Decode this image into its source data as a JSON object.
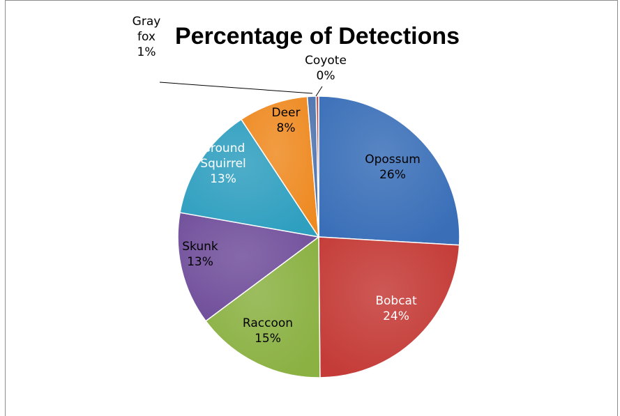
{
  "chart_data": {
    "type": "pie",
    "title": "Percentage of Detections",
    "slices": [
      {
        "label": "Opossum",
        "lines": [
          "Opossum"
        ],
        "value": 26,
        "pct_label": "26%",
        "color": "#3a6fb8"
      },
      {
        "label": "Bobcat",
        "lines": [
          "Bobcat"
        ],
        "value": 24,
        "pct_label": "24%",
        "color": "#c43b37"
      },
      {
        "label": "Raccoon",
        "lines": [
          "Raccoon"
        ],
        "value": 15,
        "pct_label": "15%",
        "color": "#8bb143"
      },
      {
        "label": "Skunk",
        "lines": [
          "Skunk"
        ],
        "value": 13,
        "pct_label": "13%",
        "color": "#714f9b"
      },
      {
        "label": "Ground Squirrel",
        "lines": [
          "Ground",
          "Squirrel"
        ],
        "value": 13,
        "pct_label": "13%",
        "color": "#2f9fc0"
      },
      {
        "label": "Deer",
        "lines": [
          "Deer"
        ],
        "value": 8,
        "pct_label": "8%",
        "color": "#ee8a22"
      },
      {
        "label": "Gray fox",
        "lines": [
          "Gray",
          "fox"
        ],
        "value": 1,
        "pct_label": "1%",
        "color": "#4a71ad"
      },
      {
        "label": "Coyote",
        "lines": [
          "Coyote"
        ],
        "value": 0.3,
        "pct_label": "0%",
        "color": "#b04a48"
      }
    ],
    "legend": "none"
  }
}
